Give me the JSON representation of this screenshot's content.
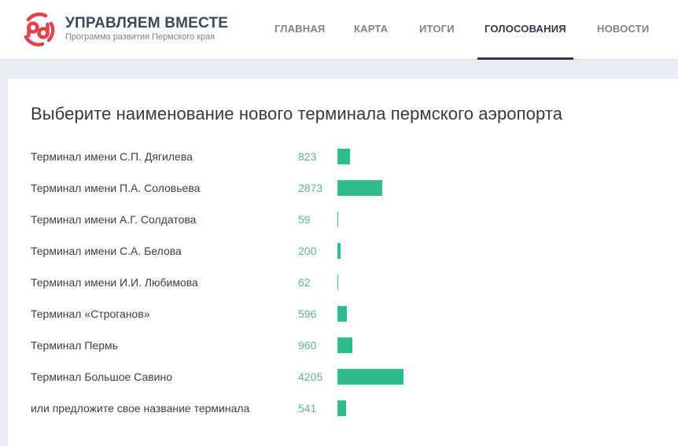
{
  "header": {
    "brand_title": "УПРАВЛЯЕМ ВМЕСТЕ",
    "brand_subtitle": "Программа развития Пермского края",
    "logo_icon": "logo-circle-icon",
    "brand_color": "#e0434a",
    "nav": [
      {
        "label": "ГЛАВНАЯ",
        "active": false
      },
      {
        "label": "КАРТА",
        "active": false
      },
      {
        "label": "ИТОГИ",
        "active": false
      },
      {
        "label": "ГОЛОСОВАНИЯ",
        "active": true
      },
      {
        "label": "НОВОСТИ",
        "active": false
      }
    ]
  },
  "poll": {
    "question": "Выберите наименование нового терминала пермского аэропорта",
    "bar_color": "#31bc8d",
    "count_color": "#5fb497",
    "options": [
      {
        "label": "Терминал имени С.П. Дягилева",
        "votes": "823"
      },
      {
        "label": "Терминал имени П.А. Соловьева",
        "votes": "2873"
      },
      {
        "label": "Терминал имени А.Г. Солдатова",
        "votes": "59"
      },
      {
        "label": "Терминал имени С.А. Белова",
        "votes": "200"
      },
      {
        "label": "Терминал имени И.И. Любимова",
        "votes": "62"
      },
      {
        "label": "Терминал «Строганов»",
        "votes": "596"
      },
      {
        "label": "Терминал Пермь",
        "votes": "960"
      },
      {
        "label": "Терминал Большое Савино",
        "votes": "4205"
      },
      {
        "label": "или предложите свое название терминала",
        "votes": "541"
      }
    ]
  },
  "chart_data": {
    "type": "bar",
    "orientation": "horizontal",
    "title": "Выберите наименование нового терминала пермского аэропорта",
    "categories": [
      "Терминал имени С.П. Дягилева",
      "Терминал имени П.А. Соловьева",
      "Терминал имени А.Г. Солдатова",
      "Терминал имени С.А. Белова",
      "Терминал имени И.И. Любимова",
      "Терминал «Строганов»",
      "Терминал Пермь",
      "Терминал Большое Савино",
      "или предложите свое название терминала"
    ],
    "values": [
      823,
      2873,
      59,
      200,
      62,
      596,
      960,
      4205,
      541
    ],
    "xlabel": "",
    "ylabel": "",
    "grid": false,
    "legend": null
  }
}
